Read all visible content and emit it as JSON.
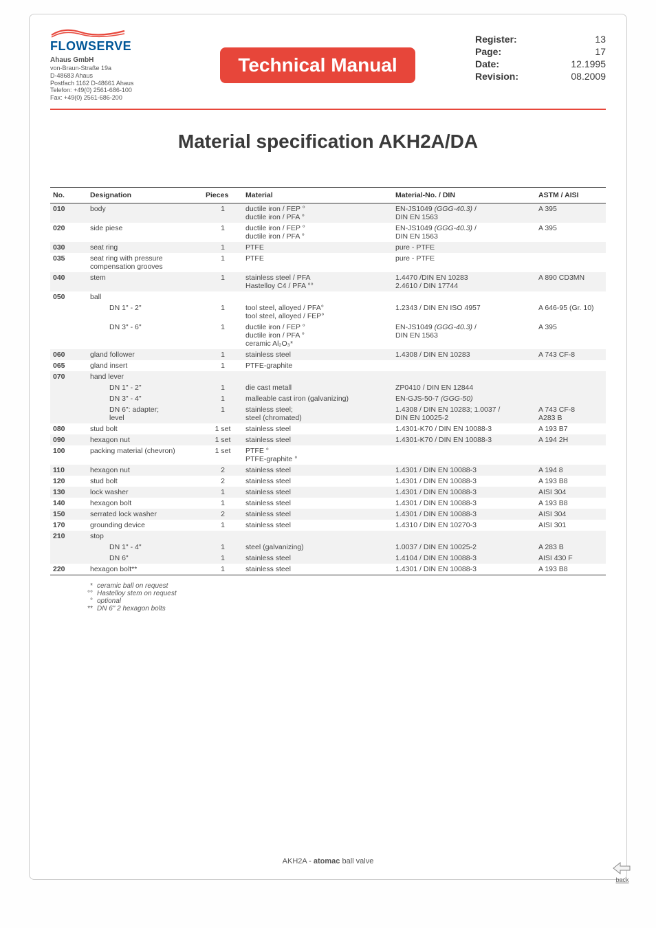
{
  "company": {
    "logo_text": "FLOWSERVE",
    "name": "Ahaus GmbH",
    "addr1": "von-Braun-Straße 19a",
    "addr2": "D-48683 Ahaus",
    "addr3": "Postfach 1162 D-48661 Ahaus",
    "tel": "Telefon: +49(0) 2561-686-100",
    "fax": "Fax: +49(0) 2561-686-200"
  },
  "title": "Technical Manual",
  "meta": {
    "register_label": "Register:",
    "register": "13",
    "page_label": "Page:",
    "page": "17",
    "date_label": "Date:",
    "date": "12.1995",
    "revision_label": "Revision:",
    "revision": "08.2009"
  },
  "spec_title": "Material specification AKH2A/DA",
  "headers": {
    "no": "No.",
    "designation": "Designation",
    "pieces": "Pieces",
    "material": "Material",
    "matno": "Material-No. / DIN",
    "astm": "ASTM / AISI"
  },
  "rows": [
    {
      "shade": true,
      "no": "010",
      "des": "body",
      "pcs": "1",
      "mat": "ductile iron / FEP °\nductile iron / PFA °",
      "matno": "EN-JS1049 (GGG-40.3) /\nDIN EN 1563",
      "matno_italic": "(GGG-40.3)",
      "astm": "A 395"
    },
    {
      "shade": false,
      "no": "020",
      "des": "side piese",
      "pcs": "1",
      "mat": "ductile iron / FEP °\nductile iron / PFA °",
      "matno": "EN-JS1049 (GGG-40.3) /\nDIN EN 1563",
      "matno_italic": "(GGG-40.3)",
      "astm": "A 395"
    },
    {
      "shade": true,
      "no": "030",
      "des": "seat ring",
      "pcs": "1",
      "mat": "PTFE",
      "matno": "pure - PTFE",
      "astm": ""
    },
    {
      "shade": false,
      "no": "035",
      "des": "seat ring with pressure compensation grooves",
      "pcs": "1",
      "mat": "PTFE",
      "matno": "pure - PTFE",
      "astm": ""
    },
    {
      "shade": true,
      "no": "040",
      "des": "stem",
      "pcs": "1",
      "mat": "stainless steel / PFA\nHastelloy C4 / PFA °°",
      "matno": "1.4470 /DIN EN 10283\n2.4610 / DIN 17744",
      "astm": "A 890 CD3MN"
    },
    {
      "shade": false,
      "no": "050",
      "des": "ball",
      "pcs": "",
      "mat": "",
      "matno": "",
      "astm": ""
    },
    {
      "shade": false,
      "no": "",
      "des": "DN 1\" - 2\"",
      "indent": true,
      "pcs": "1",
      "mat": "tool steel, alloyed / PFA°\ntool steel, alloyed / FEP°",
      "matno": "1.2343 / DIN EN ISO 4957",
      "astm": "A 646-95 (Gr. 10)"
    },
    {
      "shade": false,
      "no": "",
      "des": "DN 3\" - 6\"",
      "indent": true,
      "pcs": "1",
      "mat": "ductile iron / FEP °\nductile iron / PFA °\nceramic Al₂O₃*",
      "matno": "EN-JS1049 (GGG-40.3) /\nDIN EN 1563",
      "matno_italic": "(GGG-40.3)",
      "astm": "A 395"
    },
    {
      "shade": true,
      "no": "060",
      "des": "gland follower",
      "pcs": "1",
      "mat": "stainless steel",
      "matno": "1.4308 / DIN EN 10283",
      "astm": "A 743 CF-8"
    },
    {
      "shade": false,
      "no": "065",
      "des": "gland insert",
      "pcs": "1",
      "mat": "PTFE-graphite",
      "matno": "",
      "astm": ""
    },
    {
      "shade": true,
      "no": "070",
      "des": "hand lever",
      "pcs": "",
      "mat": "",
      "matno": "",
      "astm": ""
    },
    {
      "shade": true,
      "no": "",
      "des": "DN 1\" - 2\"",
      "indent": true,
      "pcs": "1",
      "mat": "die cast metall",
      "matno": "ZP0410 / DIN EN 12844",
      "astm": ""
    },
    {
      "shade": true,
      "no": "",
      "des": "DN 3\" - 4\"",
      "indent": true,
      "pcs": "1",
      "mat": "malleable cast iron (galvanizing)",
      "matno": "EN-GJS-50-7 (GGG-50)",
      "matno_italic": "(GGG-50)",
      "astm": ""
    },
    {
      "shade": true,
      "no": "",
      "des": "DN 6\": adapter;\nlevel",
      "indent": true,
      "pcs": "1",
      "mat": "stainless steel;\nsteel (chromated)",
      "matno": "1.4308 / DIN EN 10283; 1.0037 /\nDIN EN 10025-2",
      "astm": "A 743 CF-8\nA283 B"
    },
    {
      "shade": false,
      "no": "080",
      "des": "stud bolt",
      "pcs": "1 set",
      "mat": "stainless steel",
      "matno": "1.4301-K70 / DIN EN 10088-3",
      "astm": "A 193 B7"
    },
    {
      "shade": true,
      "no": "090",
      "des": "hexagon nut",
      "pcs": "1 set",
      "mat": "stainless steel",
      "matno": "1.4301-K70 / DIN EN 10088-3",
      "astm": "A 194 2H"
    },
    {
      "shade": false,
      "no": "100",
      "des": "packing material (chevron)",
      "pcs": "1 set",
      "mat": "PTFE °\nPTFE-graphite °",
      "matno": "",
      "astm": ""
    },
    {
      "shade": true,
      "no": "110",
      "des": "hexagon nut",
      "pcs": "2",
      "mat": "stainless steel",
      "matno": "1.4301 / DIN EN 10088-3",
      "astm": "A 194 8"
    },
    {
      "shade": false,
      "no": "120",
      "des": "stud bolt",
      "pcs": "2",
      "mat": "stainless steel",
      "matno": "1.4301 / DIN EN 10088-3",
      "astm": "A 193 B8"
    },
    {
      "shade": true,
      "no": "130",
      "des": "lock washer",
      "pcs": "1",
      "mat": "stainless steel",
      "matno": "1.4301 / DIN EN 10088-3",
      "astm": "AISI 304"
    },
    {
      "shade": false,
      "no": "140",
      "des": "hexagon bolt",
      "pcs": "1",
      "mat": "stainless steel",
      "matno": "1.4301 / DIN EN 10088-3",
      "astm": "A 193 B8"
    },
    {
      "shade": true,
      "no": "150",
      "des": "serrated lock washer",
      "pcs": "2",
      "mat": "stainless steel",
      "matno": "1.4301 / DIN EN 10088-3",
      "astm": "AISI 304"
    },
    {
      "shade": false,
      "no": "170",
      "des": "grounding device",
      "pcs": "1",
      "mat": "stainless steel",
      "matno": "1.4310 / DIN EN 10270-3",
      "astm": "AISI 301"
    },
    {
      "shade": true,
      "no": "210",
      "des": "stop",
      "pcs": "",
      "mat": "",
      "matno": "",
      "astm": ""
    },
    {
      "shade": true,
      "no": "",
      "des": "DN 1\" - 4\"",
      "indent": true,
      "pcs": "1",
      "mat": "steel (galvanizing)",
      "matno": "1.0037 / DIN EN 10025-2",
      "astm": "A 283 B"
    },
    {
      "shade": true,
      "no": "",
      "des": "DN 6\"",
      "indent": true,
      "pcs": "1",
      "mat": "stainless steel",
      "matno": "1.4104 / DIN EN 10088-3",
      "astm": "AISI 430 F"
    },
    {
      "shade": false,
      "no": "220",
      "des": "hexagon bolt**",
      "pcs": "1",
      "mat": "stainless steel",
      "matno": "1.4301 / DIN EN 10088-3",
      "astm": "A 193 B8"
    }
  ],
  "footnotes": [
    {
      "sym": "*",
      "text": "ceramic ball on request"
    },
    {
      "sym": "°°",
      "text": "Hastelloy stem on request"
    },
    {
      "sym": "°",
      "text": "optional"
    },
    {
      "sym": "**",
      "text": "DN 6\" 2 hexagon bolts"
    }
  ],
  "footer": {
    "prefix": "AKH2A - ",
    "bold": "atomac",
    "suffix": " ball valve"
  },
  "back_label": "back"
}
